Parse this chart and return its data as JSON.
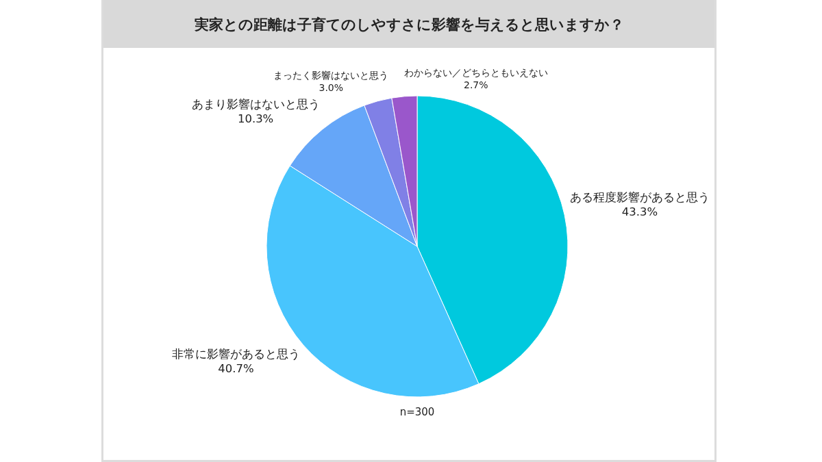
{
  "chart_data": {
    "type": "pie",
    "title": "実家との距離は子育てのしやすさに影響を与えると思いますか？",
    "categories": [
      "ある程度影響があると思う",
      "非常に影響があると思う",
      "あまり影響はないと思う",
      "まったく影響はないと思う",
      "わからない／どちらともいえない"
    ],
    "values": [
      43.3,
      40.7,
      10.3,
      3.0,
      2.7
    ],
    "value_labels": [
      "43.3%",
      "40.7%",
      "10.3%",
      "3.0%",
      "2.7%"
    ],
    "colors": [
      "#00c9de",
      "#48c5fd",
      "#65a6f8",
      "#8080e6",
      "#9a57cb"
    ],
    "annotations": [
      "n=300"
    ]
  }
}
